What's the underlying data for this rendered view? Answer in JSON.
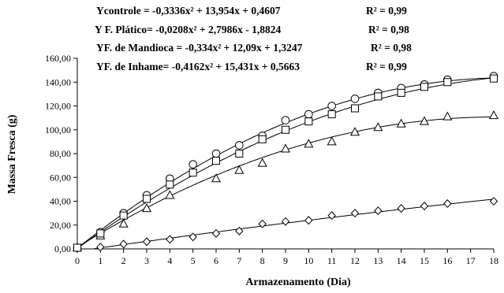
{
  "chart_data": {
    "type": "scatter",
    "title": "",
    "xlabel": "Armazenamento (Dia)",
    "ylabel": "Massa Fresca (g)",
    "xlim": [
      0,
      18
    ],
    "ylim": [
      0,
      160
    ],
    "x_ticks": [
      0,
      1,
      2,
      3,
      4,
      5,
      6,
      7,
      8,
      9,
      10,
      11,
      12,
      13,
      14,
      15,
      16,
      17,
      18
    ],
    "y_ticks": [
      0,
      20,
      40,
      60,
      80,
      100,
      120,
      140,
      160
    ],
    "y_tick_labels": [
      "0,00",
      "20,00",
      "40,00",
      "60,00",
      "80,00",
      "100,00",
      "120,00",
      "140,00",
      "160,00"
    ],
    "grid": false,
    "equations": [
      {
        "text": "Ycontrole = -0,3336x² + 13,954x + 0,4607",
        "r2": "R² = 0,99"
      },
      {
        "text": "Y F. Plático= -0,0208x² + 2,7986x - 1,8824",
        "r2": "R² = 0,98"
      },
      {
        "text": "YF. de Mandioca = -0,334x² + 12,09x + 1,3247",
        "r2": "R² = 0,98"
      },
      {
        "text": "YF. de Inhame= -0,4162x² + 15,431x + 0,5663",
        "r2": "R² = 0,99"
      }
    ],
    "series": [
      {
        "marker": "circle",
        "coef": [
          -0.3336,
          13.954,
          0.4607
        ],
        "x": [
          0,
          1,
          2,
          3,
          4,
          5,
          6,
          7,
          8,
          9,
          10,
          11,
          12,
          13,
          14,
          15,
          16,
          18
        ],
        "y": [
          1,
          14,
          30,
          45,
          59,
          71,
          80,
          87,
          95,
          108,
          113,
          120,
          126,
          131,
          135,
          138,
          142,
          145
        ]
      },
      {
        "marker": "diamond",
        "coef": [
          -0.0208,
          2.7986,
          -1.8824
        ],
        "x": [
          0,
          1,
          2,
          3,
          4,
          5,
          6,
          7,
          8,
          9,
          10,
          11,
          12,
          13,
          14,
          15,
          16,
          18
        ],
        "y": [
          0.5,
          1.5,
          4,
          6,
          8,
          10,
          13,
          15,
          21,
          23,
          24,
          28,
          30,
          32,
          34,
          36,
          38,
          40
        ]
      },
      {
        "marker": "triangle",
        "coef": [
          -0.334,
          12.09,
          1.3247
        ],
        "x": [
          0,
          1,
          2,
          3,
          4,
          6,
          7,
          8,
          9,
          10,
          11,
          12,
          13,
          14,
          15,
          16,
          18
        ],
        "y": [
          1,
          11,
          21,
          34,
          45,
          59,
          66,
          72,
          84,
          88,
          90,
          98,
          102,
          105,
          107,
          111,
          112
        ]
      },
      {
        "marker": "square",
        "coef": [
          -0.4162,
          15.431,
          0.5663
        ],
        "x": [
          0,
          1,
          2,
          3,
          4,
          5,
          6,
          7,
          8,
          9,
          10,
          11,
          12,
          13,
          14,
          15,
          16,
          18
        ],
        "y": [
          1,
          13,
          28,
          42,
          54,
          64,
          74,
          80,
          92,
          100,
          107,
          113,
          118,
          128,
          131,
          136,
          140,
          143
        ]
      }
    ]
  }
}
